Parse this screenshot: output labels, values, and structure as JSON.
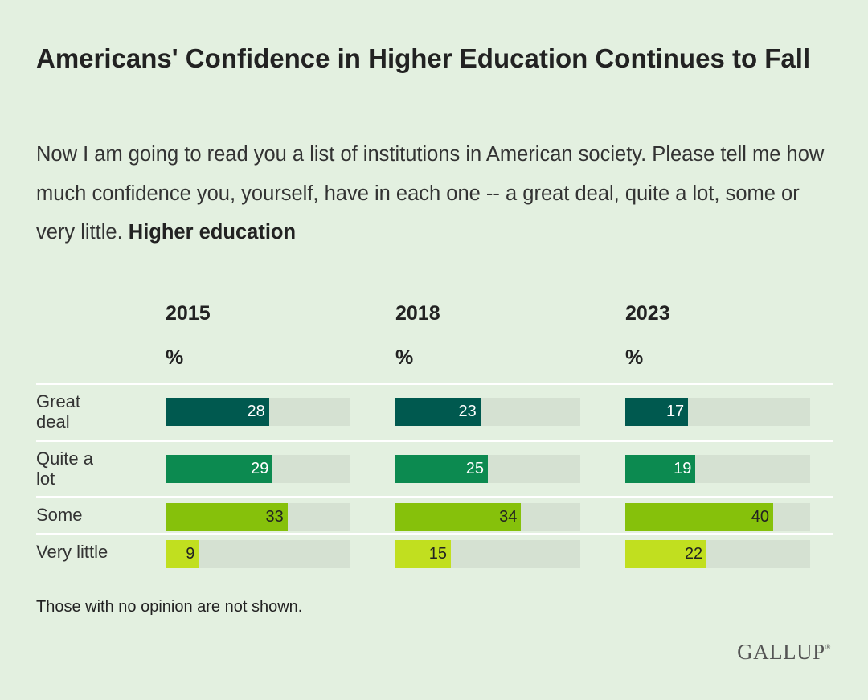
{
  "title": "Americans' Confidence in Higher Education Continues to Fall",
  "subtitle": {
    "text": "Now I am going to read you a list of institutions in American society. Please tell me how much confidence you, yourself, have in each one -- a great deal, quite a lot, some or very little. ",
    "bold": "Higher education"
  },
  "note": "Those with no opinion are not shown.",
  "logo": "GALLUP",
  "chart_data": {
    "type": "bar",
    "unit": "%",
    "xlim": [
      0,
      100
    ],
    "categories": [
      "Great deal",
      "Quite a lot",
      "Some",
      "Very little"
    ],
    "category_colors": [
      "#00594f",
      "#0c8a50",
      "#86c10b",
      "#c1df1f"
    ],
    "value_text_colors": [
      "#ffffff",
      "#ffffff",
      "#222222",
      "#222222"
    ],
    "track_color": "#d5e1d2",
    "series": [
      {
        "name": "2015",
        "values": [
          28,
          29,
          33,
          9
        ]
      },
      {
        "name": "2018",
        "values": [
          23,
          25,
          34,
          15
        ]
      },
      {
        "name": "2023",
        "values": [
          17,
          19,
          40,
          22
        ]
      }
    ]
  }
}
